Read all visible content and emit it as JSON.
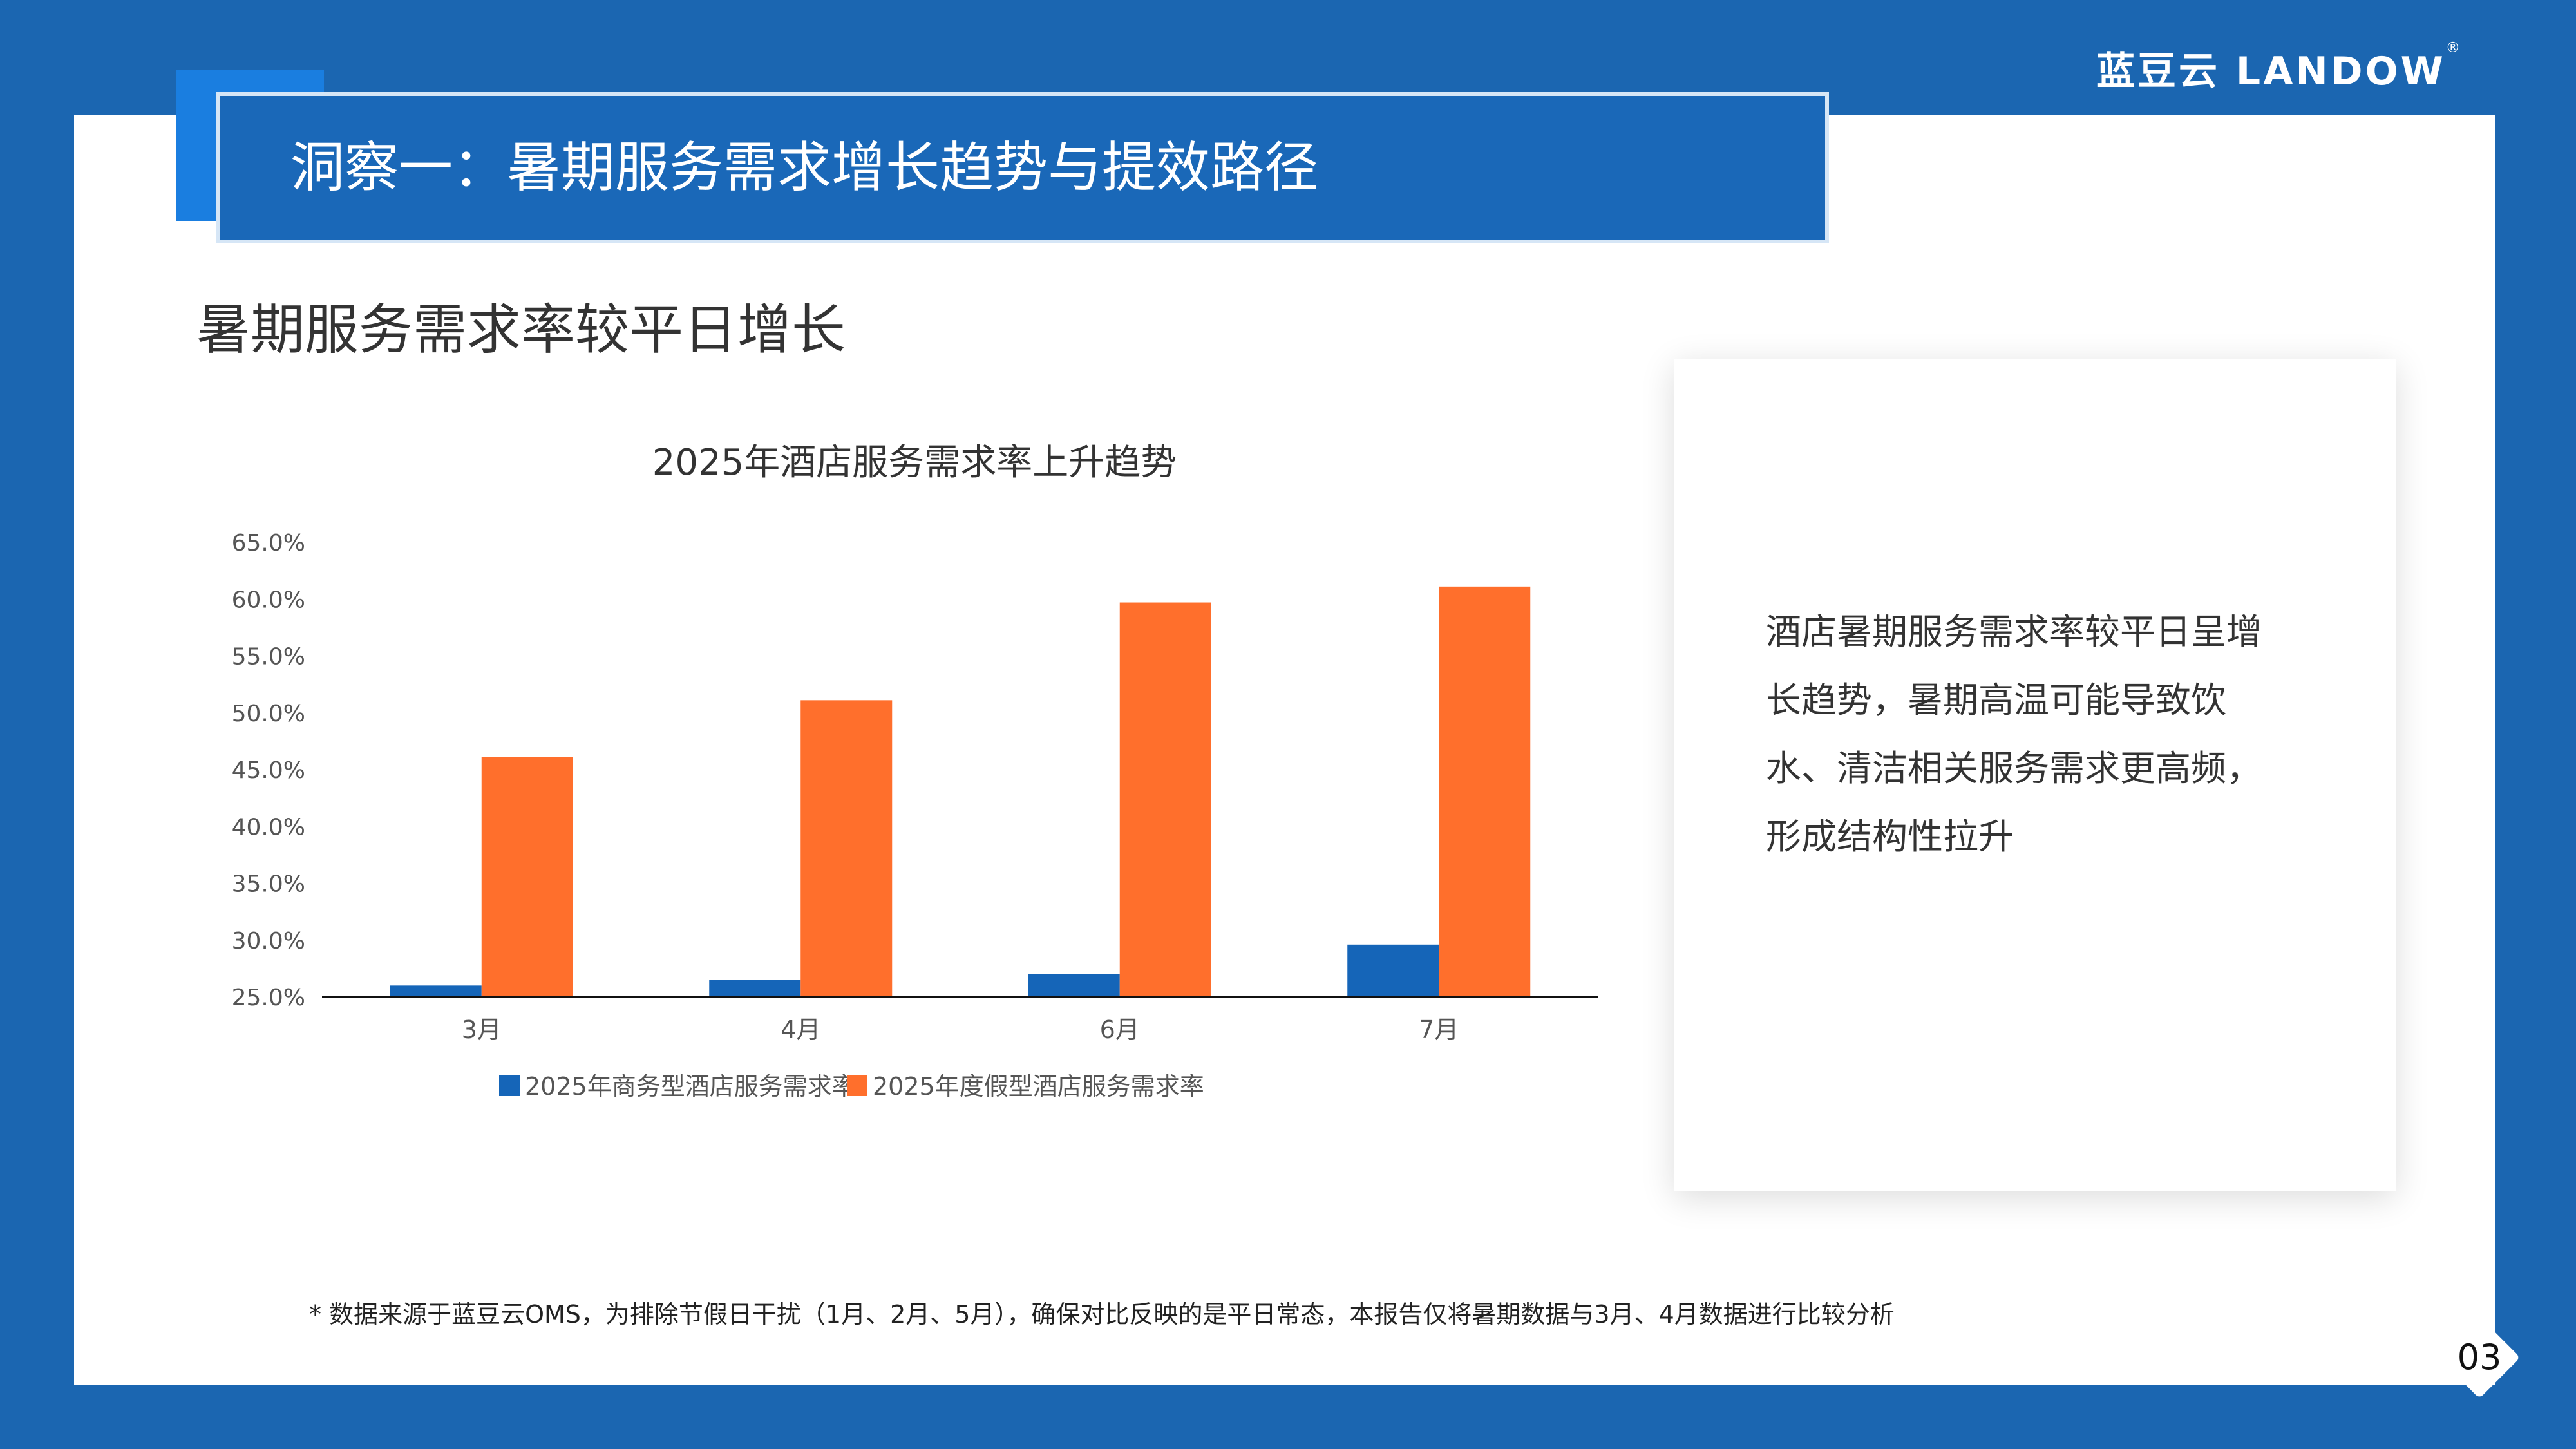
{
  "header": {
    "title": "洞察一：暑期服务需求增长趋势与提效路径",
    "brand_cn": "蓝豆云",
    "brand_en": "LANDOW",
    "brand_mark": "®"
  },
  "section_title": "暑期服务需求率较平日增长",
  "chart_data": {
    "type": "bar",
    "title": "2025年酒店服务需求率上升趋势",
    "categories": [
      "3月",
      "4月",
      "6月",
      "7月"
    ],
    "series": [
      {
        "name": "2025年商务型酒店服务需求率",
        "color": "#1565b8",
        "values": [
          26.0,
          26.5,
          27.0,
          29.6
        ]
      },
      {
        "name": "2025年度假型酒店服务需求率",
        "color": "#ff6f2c",
        "values": [
          46.1,
          51.1,
          59.7,
          61.1
        ]
      }
    ],
    "ylim": [
      25,
      65
    ],
    "yticks": [
      "65.0%",
      "60.0%",
      "55.0%",
      "50.0%",
      "45.0%",
      "40.0%",
      "35.0%",
      "30.0%",
      "25.0%"
    ],
    "ytick_values": [
      65,
      60,
      55,
      50,
      45,
      40,
      35,
      30,
      25
    ],
    "xlabel": "",
    "ylabel": "",
    "grid": false,
    "legend_position": "bottom"
  },
  "side_text": "酒店暑期服务需求率较平日呈增长趋势，暑期高温可能导致饮水、清洁相关服务需求更高频，形成结构性拉升",
  "footnote": "* 数据来源于蓝豆云OMS，为排除节假日干扰（1月、2月、5月），确保对比反映的是平日常态，本报告仅将暑期数据与3月、4月数据进行比较分析",
  "page_number": "03"
}
